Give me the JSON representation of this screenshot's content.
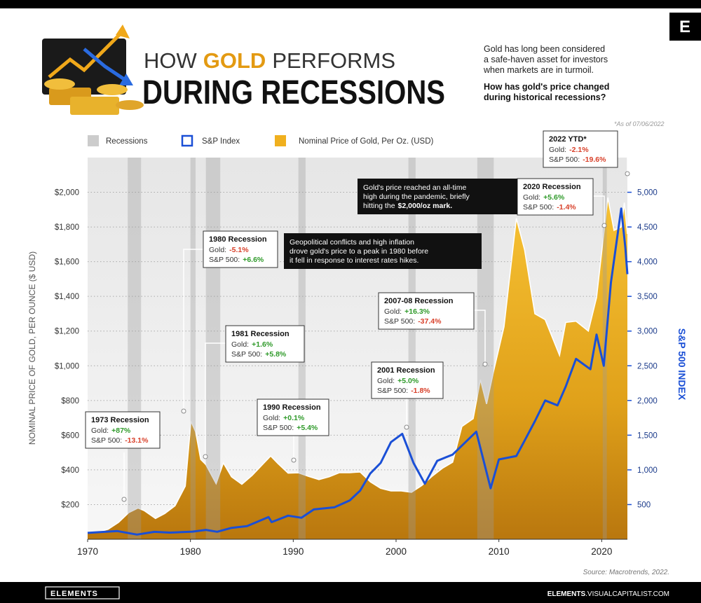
{
  "header": {
    "title_parts": [
      "HOW",
      "GOLD",
      "PERFORMS"
    ],
    "title_line2": "DURING RECESSIONS",
    "intro_lines": [
      "Gold has long been considered",
      "a safe-haven asset for investors",
      "when markets are in turmoil."
    ],
    "question_lines": [
      "How has gold's price changed",
      "during historical recessions?"
    ],
    "logo": "E"
  },
  "chart_data": {
    "type": "area-line",
    "note": "*As of 07/06/2022",
    "y_label": "NOMINAL PRICE OF GOLD, PER OUNCE ($ USD)",
    "y2_label": "S&P 500 INDEX",
    "xlim": [
      1970,
      2022.5
    ],
    "xticks": [
      1970,
      1980,
      1990,
      2000,
      2010,
      2020
    ],
    "ylim": [
      0,
      2200
    ],
    "yticks": [
      {
        "value": 200,
        "label": "$200"
      },
      {
        "value": 400,
        "label": "$400"
      },
      {
        "value": 600,
        "label": "$600"
      },
      {
        "value": 800,
        "label": "$800"
      },
      {
        "value": 1000,
        "label": "$1,000"
      },
      {
        "value": 1200,
        "label": "$1,200"
      },
      {
        "value": 1400,
        "label": "$1,400"
      },
      {
        "value": 1600,
        "label": "$1,600"
      },
      {
        "value": 1800,
        "label": "$1,800"
      },
      {
        "value": 2000,
        "label": "$2,000"
      }
    ],
    "y2lim": [
      0,
      5500
    ],
    "y2ticks": [
      500,
      {
        "value": 1000,
        "label": "1,000"
      },
      {
        "value": 1500,
        "label": "1,500"
      },
      {
        "value": 2000,
        "label": "2,000"
      },
      {
        "value": 2500,
        "label": "2,500"
      },
      {
        "value": 3000,
        "label": "3,000"
      },
      {
        "value": 3500,
        "label": "3,500"
      },
      {
        "value": 4000,
        "label": "4,000"
      },
      {
        "value": 4500,
        "label": "4,500"
      },
      {
        "value": 5000,
        "label": "5,000"
      }
    ],
    "grid": true,
    "recessions": {
      "name": "Recessions",
      "color": "#9a9a9a",
      "periods": [
        [
          1973.9,
          1975.2
        ],
        [
          1980.0,
          1980.5
        ],
        [
          1981.5,
          1982.9
        ],
        [
          1990.5,
          1991.2
        ],
        [
          2001.2,
          2001.9
        ],
        [
          2007.9,
          2009.5
        ],
        [
          2020.1,
          2020.5
        ]
      ]
    },
    "series": [
      {
        "name": "Nominal Price of Gold, Per Oz. (USD)",
        "color": "#f0b01e",
        "x": [
          1970,
          1971,
          1972,
          1973,
          1974,
          1974.9,
          1975.5,
          1976.6,
          1977.5,
          1978.5,
          1979.5,
          1980.05,
          1980.5,
          1981,
          1981.5,
          1982.5,
          1983.2,
          1984,
          1985,
          1986,
          1987.8,
          1988.5,
          1989.5,
          1990.5,
          1991.5,
          1992.5,
          1993.5,
          1994.5,
          1995.5,
          1996.5,
          1997.5,
          1998.5,
          1999.5,
          2000.5,
          2001.5,
          2002.5,
          2003.5,
          2004.5,
          2005.5,
          2006.4,
          2007.5,
          2008.2,
          2008.8,
          2009.5,
          2010.5,
          2011.7,
          2012.5,
          2013.5,
          2014.5,
          2015.9,
          2016.5,
          2017.5,
          2018.7,
          2019.5,
          2020.6,
          2021.2,
          2021.9,
          2022.2,
          2022.5
        ],
        "values": [
          36,
          41,
          58,
          97,
          154,
          180,
          165,
          120,
          148,
          193,
          306,
          680,
          620,
          460,
          430,
          320,
          440,
          360,
          317,
          368,
          480,
          437,
          381,
          383,
          362,
          344,
          360,
          384,
          384,
          388,
          331,
          294,
          279,
          279,
          271,
          310,
          363,
          409,
          444,
          650,
          695,
          920,
          780,
          972,
          1225,
          1850,
          1669,
          1300,
          1266,
          1060,
          1250,
          1257,
          1200,
          1393,
          1970,
          1780,
          1800,
          1940,
          1760
        ]
      },
      {
        "name": "S&P Index",
        "color": "#1a4fd6",
        "axis": "y2",
        "x": [
          1970,
          1972.9,
          1974.8,
          1976.5,
          1978,
          1980.2,
          1981.5,
          1982.6,
          1984,
          1985.5,
          1987.6,
          1987.9,
          1989.5,
          1990.8,
          1992,
          1994,
          1995.5,
          1996.5,
          1997.5,
          1998.5,
          1999.5,
          2000.6,
          2001.7,
          2002.8,
          2004,
          2005.5,
          2007.8,
          2009.2,
          2010,
          2011.7,
          2012.5,
          2013.5,
          2014.5,
          2015.7,
          2016.5,
          2017.5,
          2018.9,
          2019.5,
          2020.2,
          2020.9,
          2021.9,
          2022.3,
          2022.5
        ],
        "values": [
          92,
          118,
          68,
          107,
          96,
          110,
          135,
          108,
          164,
          190,
          320,
          247,
          340,
          310,
          430,
          460,
          560,
          700,
          950,
          1100,
          1400,
          1520,
          1100,
          800,
          1130,
          1220,
          1550,
          735,
          1150,
          1200,
          1420,
          1700,
          2000,
          1930,
          2200,
          2600,
          2450,
          2950,
          2500,
          3700,
          4766,
          4200,
          3820
        ]
      }
    ],
    "annotations": [
      {
        "title": "1973 Recession",
        "gold_label": "Gold:",
        "gold": "+87%",
        "sp_label": "S&P 500:",
        "sp": "-13.1%"
      },
      {
        "title": "1980 Recession",
        "gold_label": "Gold:",
        "gold": "-5.1%",
        "sp_label": "S&P 500:",
        "sp": "+6.6%"
      },
      {
        "title": "1981 Recession",
        "gold_label": "Gold:",
        "gold": "+1.6%",
        "sp_label": "S&P 500:",
        "sp": "+5.8%"
      },
      {
        "title": "1990 Recession",
        "gold_label": "Gold:",
        "gold": "+0.1%",
        "sp_label": "S&P 500:",
        "sp": "+5.4%"
      },
      {
        "title": "2001 Recession",
        "gold_label": "Gold:",
        "gold": "+5.0%",
        "sp_label": "S&P 500:",
        "sp": "-1.8%"
      },
      {
        "title": "2007-08 Recession",
        "gold_label": "Gold:",
        "gold": "+16.3%",
        "sp_label": "S&P 500:",
        "sp": "-37.4%"
      },
      {
        "title": "2020 Recession",
        "gold_label": "Gold:",
        "gold": "+5.6%",
        "sp_label": "S&P 500:",
        "sp": "-1.4%"
      },
      {
        "title": "2022 YTD*",
        "gold_label": "Gold:",
        "gold": "-2.1%",
        "sp_label": "S&P 500:",
        "sp": "-19.6%"
      }
    ],
    "callouts": [
      {
        "lines": [
          "Gold's price reached an all-time",
          "high during the pandemic, briefly",
          "hitting the"
        ],
        "bold": "$2,000/oz mark."
      },
      {
        "lines": [
          "Geopolitical conflicts and high inflation",
          "drove gold's price to a peak in 1980 before",
          "it fell in response to interest rates hikes."
        ]
      }
    ],
    "source": "Source: Macrotrends, 2022."
  },
  "footer": {
    "brand": "ELEMENTS",
    "site_bold": "ELEMENTS",
    "site_rest": ".VISUALCAPITALIST.COM"
  }
}
